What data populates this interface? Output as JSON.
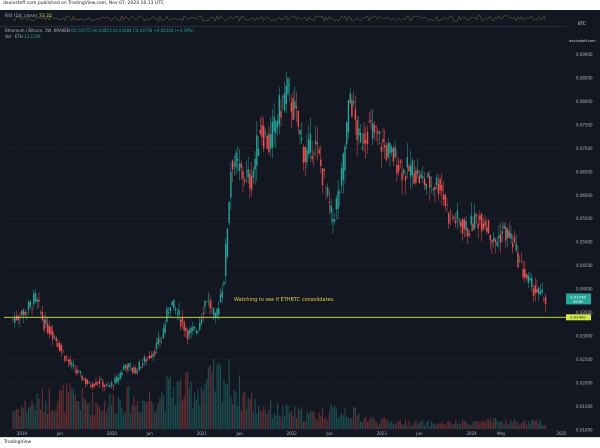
{
  "header": {
    "publisher": "davinsteff.com published on TradingView.com, Nov 07, 2024 16:13 UTC"
  },
  "rsi": {
    "label": "RSI (14, close)",
    "value": "33.32"
  },
  "legend": {
    "symbol": "Ethereum / Bitcoin, 1W, KRAKEN",
    "ohlc": "O0.03575 H0.03853 L0.03484 C0.03738 +0.00164 (+4.59%)",
    "vol_label": "Vol · ETH",
    "vol_value": "13.235K"
  },
  "price_axis": {
    "currency": "BTC",
    "site": "davinsteff.com"
  },
  "annotation": "Watching to see if ETHBTC consolidates.",
  "footer": {
    "brand": "TradingView"
  },
  "colors": {
    "up": "#26a69a",
    "down": "#ef5350",
    "bg": "#131722",
    "line": "#d4e84a",
    "rsi": "#e8d24a"
  },
  "chart_data": {
    "type": "candlestick",
    "title": "Ethereum / Bitcoin, 1W, KRAKEN",
    "x_ticks": [
      "2019",
      "Jun",
      "2020",
      "Jun",
      "2021",
      "Jun",
      "2022",
      "Jun",
      "2023",
      "Jun",
      "2024",
      "May",
      "2025"
    ],
    "y_ticks": [
      "0.01000",
      "0.01500",
      "0.02000",
      "0.02500",
      "0.03000",
      "0.03500",
      "0.04000",
      "0.04500",
      "0.05000",
      "0.05500",
      "0.06000",
      "0.06500",
      "0.07000",
      "0.07500",
      "0.08000",
      "0.08500",
      "0.09000"
    ],
    "ylim": [
      0.0085,
      0.0935
    ],
    "price_labels": {
      "last": "0.03738",
      "countdown": "3d 8h",
      "level": "0.03400"
    },
    "horizontal_line": {
      "value": 0.034,
      "label": "Watching to see if ETHBTC consolidates."
    },
    "series": [
      {
        "name": "Ethereum / Bitcoin",
        "price": [
          [
            2018.9,
            0.0335
          ],
          [
            2019.05,
            0.0355
          ],
          [
            2019.15,
            0.038
          ],
          [
            2019.25,
            0.0325
          ],
          [
            2019.35,
            0.0305
          ],
          [
            2019.45,
            0.0265
          ],
          [
            2019.55,
            0.0235
          ],
          [
            2019.65,
            0.0215
          ],
          [
            2019.75,
            0.0195
          ],
          [
            2019.85,
            0.0205
          ],
          [
            2019.95,
            0.019
          ],
          [
            2020.05,
            0.0205
          ],
          [
            2020.15,
            0.024
          ],
          [
            2020.25,
            0.0225
          ],
          [
            2020.35,
            0.0245
          ],
          [
            2020.45,
            0.0265
          ],
          [
            2020.55,
            0.0295
          ],
          [
            2020.65,
            0.0375
          ],
          [
            2020.75,
            0.034
          ],
          [
            2020.85,
            0.0305
          ],
          [
            2020.95,
            0.0315
          ],
          [
            2021.05,
            0.0385
          ],
          [
            2021.15,
            0.0335
          ],
          [
            2021.25,
            0.043
          ],
          [
            2021.33,
            0.068
          ],
          [
            2021.45,
            0.0645
          ],
          [
            2021.55,
            0.063
          ],
          [
            2021.65,
            0.0745
          ],
          [
            2021.75,
            0.0705
          ],
          [
            2021.85,
            0.0775
          ],
          [
            2021.95,
            0.0825
          ],
          [
            2022.05,
            0.0765
          ],
          [
            2022.15,
            0.068
          ],
          [
            2022.25,
            0.0715
          ],
          [
            2022.35,
            0.064
          ],
          [
            2022.45,
            0.0545
          ],
          [
            2022.55,
            0.0625
          ],
          [
            2022.65,
            0.0815
          ],
          [
            2022.75,
            0.071
          ],
          [
            2022.85,
            0.0745
          ],
          [
            2022.95,
            0.0725
          ],
          [
            2023.05,
            0.0695
          ],
          [
            2023.15,
            0.068
          ],
          [
            2023.25,
            0.065
          ],
          [
            2023.35,
            0.0655
          ],
          [
            2023.45,
            0.063
          ],
          [
            2023.55,
            0.0625
          ],
          [
            2023.65,
            0.0625
          ],
          [
            2023.75,
            0.0555
          ],
          [
            2023.85,
            0.0545
          ],
          [
            2023.95,
            0.0525
          ],
          [
            2024.05,
            0.055
          ],
          [
            2024.15,
            0.0545
          ],
          [
            2024.25,
            0.0495
          ],
          [
            2024.35,
            0.0525
          ],
          [
            2024.45,
            0.0505
          ],
          [
            2024.55,
            0.0445
          ],
          [
            2024.65,
            0.041
          ],
          [
            2024.75,
            0.039
          ],
          [
            2024.84,
            0.0374
          ]
        ]
      },
      {
        "name": "Vol",
        "relative_volume": [
          [
            2018.9,
            0.35
          ],
          [
            2019.1,
            0.45
          ],
          [
            2019.3,
            0.55
          ],
          [
            2019.5,
            0.6
          ],
          [
            2019.7,
            0.5
          ],
          [
            2019.9,
            0.45
          ],
          [
            2020.1,
            0.55
          ],
          [
            2020.3,
            0.5
          ],
          [
            2020.5,
            0.6
          ],
          [
            2020.7,
            0.75
          ],
          [
            2020.9,
            0.7
          ],
          [
            2021.1,
            0.85
          ],
          [
            2021.25,
            1.0
          ],
          [
            2021.4,
            0.7
          ],
          [
            2021.6,
            0.45
          ],
          [
            2021.8,
            0.35
          ],
          [
            2022.0,
            0.3
          ],
          [
            2022.2,
            0.25
          ],
          [
            2022.4,
            0.3
          ],
          [
            2022.6,
            0.35
          ],
          [
            2022.8,
            0.2
          ],
          [
            2023.0,
            0.15
          ],
          [
            2023.3,
            0.12
          ],
          [
            2023.6,
            0.1
          ],
          [
            2023.9,
            0.12
          ],
          [
            2024.2,
            0.14
          ],
          [
            2024.5,
            0.13
          ],
          [
            2024.84,
            0.12
          ]
        ]
      }
    ]
  }
}
